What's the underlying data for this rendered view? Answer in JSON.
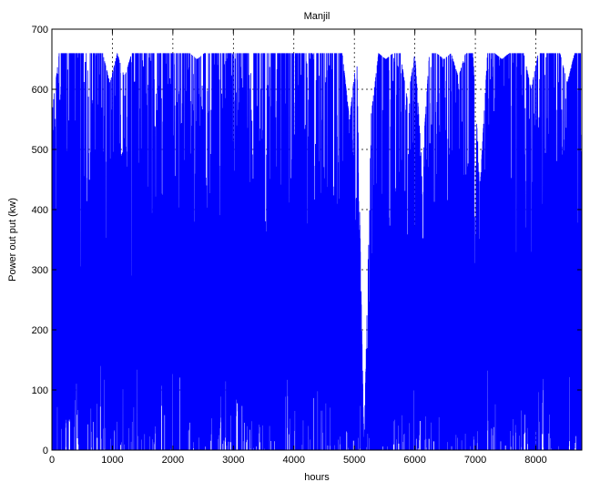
{
  "chart_data": {
    "type": "line",
    "title": "Manjil",
    "xlabel": "hours",
    "ylabel": "Power out put (kw)",
    "xlim": [
      0,
      8760
    ],
    "ylim": [
      0,
      700
    ],
    "xticks": [
      0,
      1000,
      2000,
      3000,
      4000,
      5000,
      6000,
      7000,
      8000
    ],
    "yticks": [
      0,
      100,
      200,
      300,
      400,
      500,
      600,
      700
    ],
    "grid": true,
    "grid_style": "dotted",
    "line_color": "#0000ff",
    "rated_power_cap": 660,
    "series": [
      {
        "x": [
          0,
          120,
          240,
          360,
          480,
          600,
          720,
          840,
          960,
          1080,
          1200,
          1320,
          1440,
          1560,
          1680,
          1800,
          1920,
          2040,
          2160,
          2280,
          2400,
          2520,
          2640,
          2760,
          2880,
          3000,
          3120,
          3240,
          3360,
          3480,
          3600,
          3720,
          3840,
          3960,
          4080,
          4200,
          4320,
          4440,
          4560,
          4680,
          4800,
          4920,
          5040,
          5160,
          5280,
          5400,
          5520,
          5640,
          5760,
          5880,
          6000,
          6120,
          6240,
          6360,
          6480,
          6600,
          6720,
          6840,
          6960,
          7080,
          7200,
          7320,
          7440,
          7560,
          7680,
          7800,
          7920,
          8040,
          8160,
          8280,
          8400,
          8520,
          8640,
          8760
        ],
        "y": [
          560,
          660,
          660,
          660,
          660,
          660,
          660,
          660,
          610,
          660,
          620,
          660,
          660,
          660,
          660,
          660,
          660,
          660,
          660,
          660,
          650,
          660,
          660,
          660,
          660,
          660,
          660,
          660,
          660,
          660,
          660,
          660,
          660,
          660,
          660,
          660,
          660,
          660,
          660,
          660,
          660,
          550,
          660,
          0,
          560,
          660,
          650,
          660,
          660,
          580,
          660,
          470,
          660,
          660,
          650,
          660,
          620,
          660,
          660,
          440,
          660,
          660,
          650,
          660,
          660,
          660,
          600,
          660,
          660,
          660,
          660,
          610,
          660,
          660
        ]
      }
    ]
  }
}
